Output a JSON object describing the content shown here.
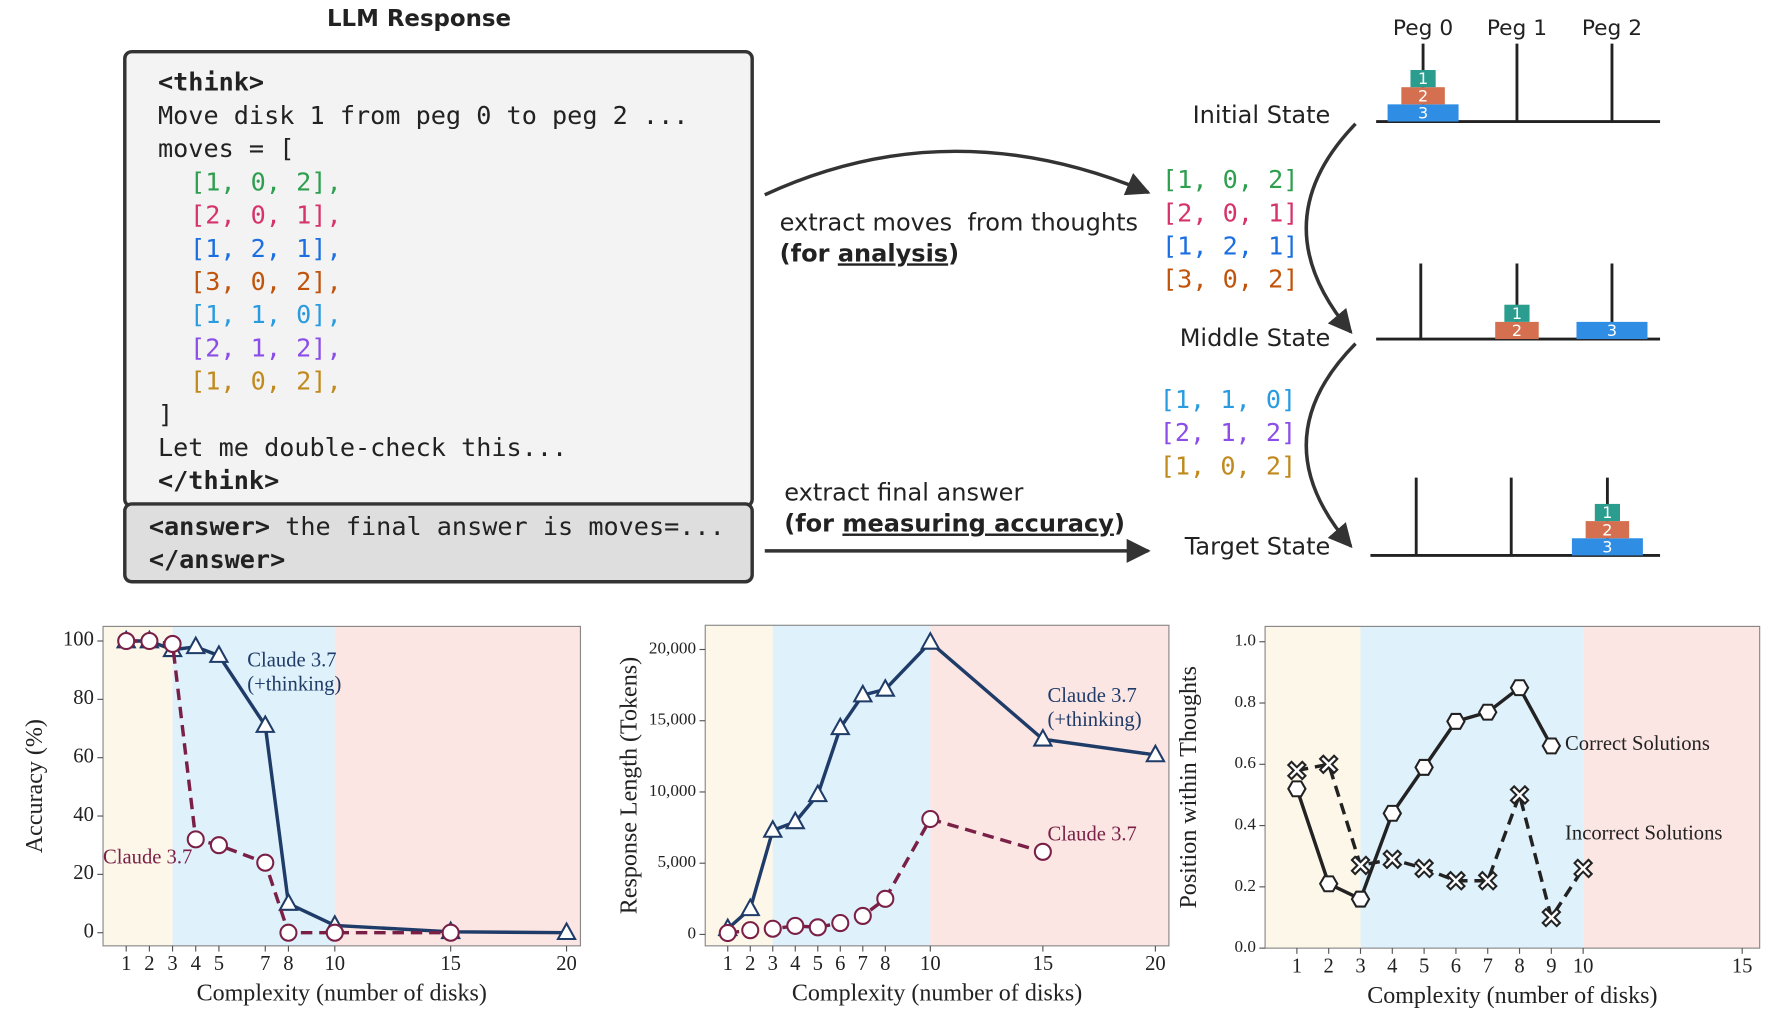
{
  "diagram": {
    "title": "LLM Response",
    "think_before": [
      "<think>",
      "Move disk 1 from peg 0 to peg 2 ...",
      "moves = ["
    ],
    "moves": [
      {
        "text": "[1, 0, 2],",
        "color": "#2e9e4f"
      },
      {
        "text": "[2, 0, 1],",
        "color": "#d6336c"
      },
      {
        "text": "[1, 2, 1],",
        "color": "#1c6fe0"
      },
      {
        "text": "[3, 0, 2],",
        "color": "#c0540c"
      },
      {
        "text": "[1, 1, 0],",
        "color": "#2b9be0"
      },
      {
        "text": "[2, 1, 2],",
        "color": "#8b4ee8"
      },
      {
        "text": "[1, 0, 2],",
        "color": "#c08a1e"
      }
    ],
    "think_after": [
      "]",
      "Let me double-check this...",
      "</think>"
    ],
    "answer_tag": "<answer>",
    "answer_text": " the final answer is moves=...",
    "answer_close": "</answer>",
    "extract_moves": {
      "line": "extract moves  from thoughts",
      "open": "(for ",
      "emph": "analysis",
      "close": ")"
    },
    "extract_answer": {
      "line": "extract final answer",
      "open": "(for ",
      "emph": "measuring accuracy",
      "close": ")"
    },
    "extracted_moves": [
      {
        "text": "[1, 0, 2]",
        "color": "#2e9e4f"
      },
      {
        "text": "[2, 0, 1]",
        "color": "#d6336c"
      },
      {
        "text": "[1, 2, 1]",
        "color": "#1c6fe0"
      },
      {
        "text": "[3, 0, 2]",
        "color": "#c0540c"
      },
      {
        "text": "[1, 1, 0]",
        "color": "#2b9be0"
      },
      {
        "text": "[2, 1, 2]",
        "color": "#8b4ee8"
      },
      {
        "text": "[1, 0, 2]",
        "color": "#c08a1e"
      }
    ],
    "pegs": [
      "Peg 0",
      "Peg 1",
      "Peg 2"
    ],
    "disk_colors": [
      "#2a9d8f",
      "#d4704f",
      "#2f8de4"
    ],
    "states": [
      {
        "label": "Initial State",
        "pegs": [
          [
            3,
            2,
            1
          ],
          [],
          []
        ]
      },
      {
        "label": "Middle State",
        "pegs": [
          [],
          [
            2,
            1
          ],
          [
            3
          ]
        ]
      },
      {
        "label": "Target State",
        "pegs": [
          [],
          [],
          [
            3,
            2,
            1
          ]
        ]
      }
    ]
  },
  "chart_data": [
    {
      "type": "line",
      "xlabel": "Complexity (number of disks)",
      "ylabel": "Accuracy (%)",
      "xlim": [
        0,
        20.6
      ],
      "ylim": [
        -4.5,
        105
      ],
      "xticks": [
        1,
        2,
        3,
        4,
        5,
        7,
        8,
        10,
        15,
        20
      ],
      "yticks": [
        0,
        20,
        40,
        60,
        80,
        100
      ],
      "regions": [
        {
          "x": [
            0,
            3
          ],
          "color": "#fdf7ea"
        },
        {
          "x": [
            3,
            10
          ],
          "color": "#dff1fb"
        },
        {
          "x": [
            10,
            20.6
          ],
          "color": "#fbe6e4"
        }
      ],
      "series": [
        {
          "name": "Claude 3.7 (+thinking)",
          "color": "#1f3b68",
          "marker": "triangle",
          "dash": false,
          "x": [
            1,
            2,
            3,
            4,
            5,
            7,
            8,
            10,
            15,
            20
          ],
          "values": [
            100,
            100,
            97,
            98,
            95,
            71,
            10,
            2.5,
            0.3,
            0
          ]
        },
        {
          "name": "Claude 3.7",
          "color": "#7a1f45",
          "marker": "circle",
          "dash": true,
          "x": [
            1,
            2,
            3,
            4,
            5,
            7,
            8,
            10,
            15
          ],
          "values": [
            100,
            100,
            99,
            32,
            30,
            24,
            0,
            0,
            0
          ]
        }
      ]
    },
    {
      "type": "line",
      "xlabel": "Complexity (number of disks)",
      "ylabel": "Response Length (Tokens)",
      "xlim": [
        0,
        20.6
      ],
      "ylim": [
        -800,
        21700
      ],
      "xticks": [
        1,
        2,
        3,
        4,
        5,
        6,
        7,
        8,
        10,
        15,
        20
      ],
      "yticks": [
        0,
        {
          "value": 5000,
          "label": "5,000"
        },
        {
          "value": 10000,
          "label": "10,000"
        },
        {
          "value": 15000,
          "label": "15,000"
        },
        {
          "value": 20000,
          "label": "20,000"
        }
      ],
      "regions": [
        {
          "x": [
            0,
            3
          ],
          "color": "#fdf7ea"
        },
        {
          "x": [
            3,
            10
          ],
          "color": "#dff1fb"
        },
        {
          "x": [
            10,
            20.6
          ],
          "color": "#fbe6e4"
        }
      ],
      "series": [
        {
          "name": "Claude 3.7 (+thinking)",
          "color": "#1f3b68",
          "marker": "triangle",
          "dash": false,
          "x": [
            1,
            2,
            3,
            4,
            5,
            6,
            7,
            8,
            10,
            15,
            20
          ],
          "values": [
            400,
            1800,
            7300,
            7900,
            9800,
            14500,
            16800,
            17200,
            20500,
            13700,
            12600
          ]
        },
        {
          "name": "Claude 3.7",
          "color": "#7a1f45",
          "marker": "circle",
          "dash": true,
          "x": [
            1,
            2,
            3,
            4,
            5,
            6,
            7,
            8,
            10,
            15
          ],
          "values": [
            100,
            300,
            400,
            600,
            500,
            800,
            1300,
            2500,
            8100,
            5800
          ]
        }
      ]
    },
    {
      "type": "line",
      "xlabel": "Complexity (number of disks)",
      "ylabel": "Position within Thoughts",
      "xlim": [
        0,
        15.55
      ],
      "ylim": [
        0,
        1.05
      ],
      "xticks": [
        1,
        2,
        3,
        4,
        5,
        6,
        7,
        8,
        9,
        10,
        15
      ],
      "yticks": [
        {
          "value": 0,
          "label": "0.0"
        },
        0.2,
        0.4,
        0.6,
        0.8,
        {
          "value": 1,
          "label": "1.0"
        }
      ],
      "regions": [
        {
          "x": [
            0,
            3
          ],
          "color": "#fdf7ea"
        },
        {
          "x": [
            3,
            10
          ],
          "color": "#dff1fb"
        },
        {
          "x": [
            10,
            15.55
          ],
          "color": "#fbe6e4"
        }
      ],
      "series": [
        {
          "name": "Correct Solutions",
          "color": "#222222",
          "marker": "hexagon",
          "dash": false,
          "x": [
            1,
            2,
            3,
            4,
            5,
            6,
            7,
            8,
            9
          ],
          "values": [
            0.52,
            0.21,
            0.16,
            0.44,
            0.59,
            0.74,
            0.77,
            0.85,
            0.66
          ]
        },
        {
          "name": "Incorrect Solutions",
          "color": "#222222",
          "marker": "cross",
          "dash": true,
          "x": [
            1,
            2,
            3,
            4,
            5,
            6,
            7,
            8,
            9,
            10
          ],
          "values": [
            0.58,
            0.6,
            0.27,
            0.29,
            0.26,
            0.22,
            0.22,
            0.5,
            0.1,
            0.26
          ]
        }
      ]
    }
  ]
}
